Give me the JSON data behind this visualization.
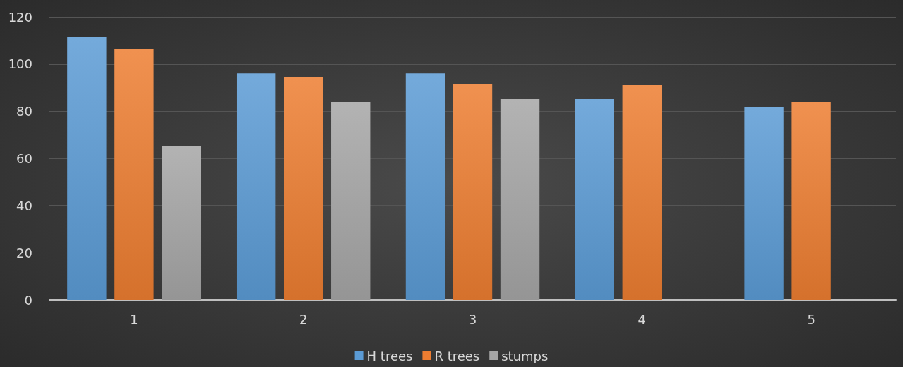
{
  "chart_data": {
    "type": "bar",
    "categories": [
      "1",
      "2",
      "3",
      "4",
      "5"
    ],
    "series": [
      {
        "name": "H trees",
        "color": "#5b9bd5",
        "values": [
          111.6,
          96,
          96,
          85.3,
          81.7
        ]
      },
      {
        "name": "R trees",
        "color": "#ed7d31",
        "values": [
          106.2,
          94.6,
          91.6,
          91.3,
          84.1
        ]
      },
      {
        "name": "stumps",
        "color": "#a5a5a5",
        "values": [
          65.2,
          84.1,
          85.3,
          null,
          null
        ]
      }
    ],
    "ylim": [
      0,
      120
    ],
    "yticks": [
      0,
      20,
      40,
      60,
      80,
      100,
      120
    ],
    "grid": "y",
    "legend": "bottom"
  }
}
